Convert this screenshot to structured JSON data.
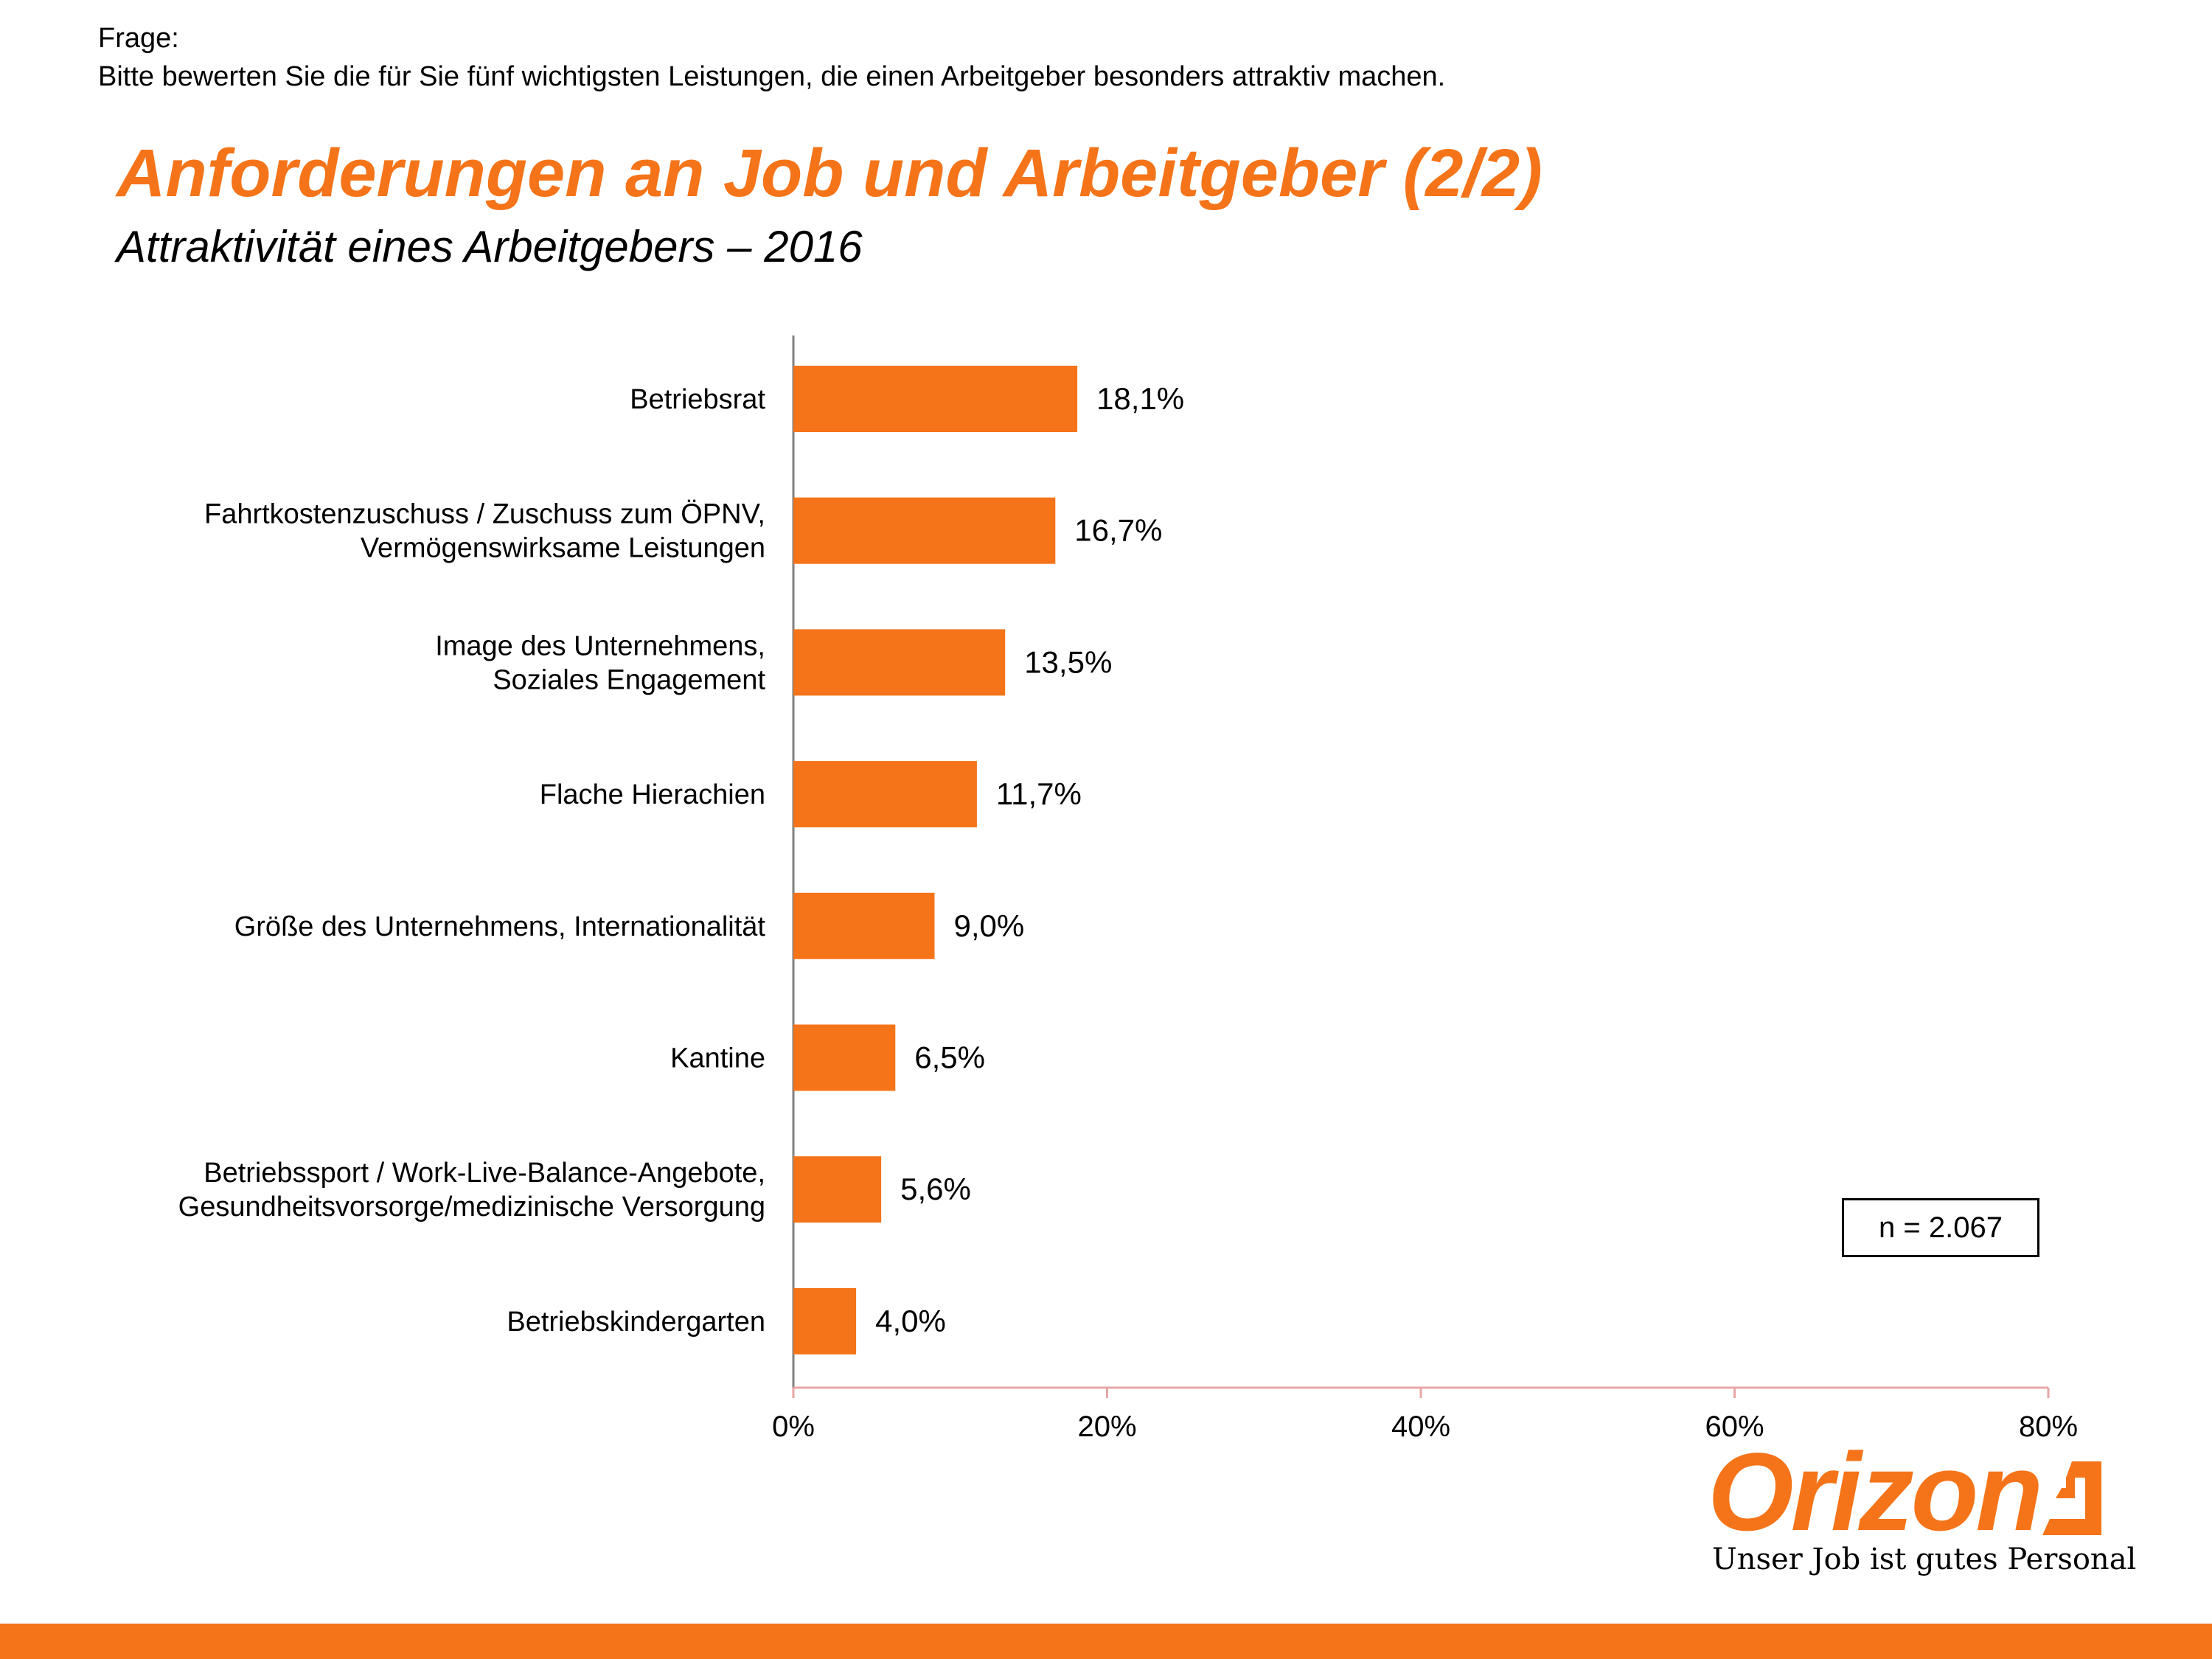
{
  "question": {
    "label": "Frage:",
    "text": "Bitte bewerten Sie die für Sie fünf wichtigsten Leistungen, die einen Arbeitgeber besonders attraktiv machen."
  },
  "header": {
    "title": "Anforderungen an Job und Arbeitgeber (2/2)",
    "subtitle": "Attraktivität eines Arbeitgebers – 2016"
  },
  "sample_note": "n = 2.067",
  "logo": {
    "name": "Orizon",
    "tagline": "Unser Job ist gutes Personal"
  },
  "colors": {
    "accent": "#f57419",
    "bar": "#f57419",
    "axis": "#808080",
    "x_axis": "#e8a6a6",
    "text": "#000000"
  },
  "chart_data": {
    "type": "bar",
    "orientation": "horizontal",
    "categories": [
      [
        "Betriebsrat"
      ],
      [
        "Fahrtkostenzuschuss / Zuschuss zum ÖPNV,",
        "Vermögenswirksame Leistungen"
      ],
      [
        "Image des Unternehmens,",
        "Soziales Engagement"
      ],
      [
        "Flache Hierachien"
      ],
      [
        "Größe des Unternehmens, Internationalität"
      ],
      [
        "Kantine"
      ],
      [
        "Betriebssport / Work-Live-Balance-Angebote,",
        "Gesundheitsvorsorge/medizinische Versorgung"
      ],
      [
        "Betriebskindergarten"
      ]
    ],
    "values": [
      18.1,
      16.7,
      13.5,
      11.7,
      9.0,
      6.5,
      5.6,
      4.0
    ],
    "value_labels": [
      "18,1%",
      "16,7%",
      "13,5%",
      "11,7%",
      "9,0%",
      "6,5%",
      "5,6%",
      "4,0%"
    ],
    "xlim": [
      0,
      80
    ],
    "xticks": [
      0,
      20,
      40,
      60,
      80
    ],
    "xtick_labels": [
      "0%",
      "20%",
      "40%",
      "60%",
      "80%"
    ],
    "grid": false,
    "legend": "none"
  }
}
